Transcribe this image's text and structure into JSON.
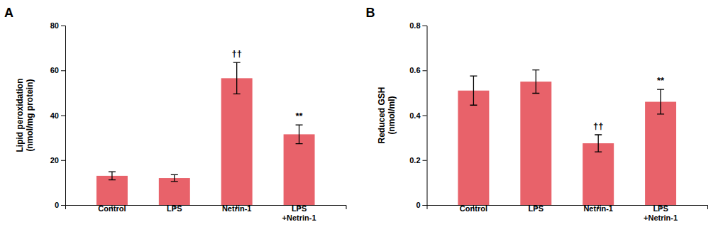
{
  "chart_data": [
    {
      "type": "bar",
      "title": "A",
      "categories": [
        "Control",
        "LPS",
        "Netrin-1",
        "LPS\n+Netrin-1"
      ],
      "values": [
        13.0,
        12.0,
        56.5,
        31.5
      ],
      "errors": [
        1.8,
        1.5,
        7.0,
        4.2
      ],
      "ylabel": "Lipid peroxidation\n(nmol/mg protein)",
      "ylim": [
        0,
        80
      ],
      "yticks": [
        0,
        20,
        40,
        60,
        80
      ],
      "color": "#E8626A",
      "annotations": [
        {
          "category": "Netrin-1",
          "text": "††"
        },
        {
          "category": "LPS\n+Netrin-1",
          "text": "**"
        }
      ]
    },
    {
      "type": "bar",
      "title": "B",
      "categories": [
        "Control",
        "LPS",
        "Netrin-1",
        "LPS\n+Netrin-1"
      ],
      "values": [
        0.51,
        0.55,
        0.275,
        0.46
      ],
      "errors": [
        0.065,
        0.052,
        0.038,
        0.055
      ],
      "ylabel": "Reduced GSH\n(nmol/ml)",
      "ylim": [
        0,
        0.8
      ],
      "yticks": [
        0,
        0.2,
        0.4,
        0.6,
        0.8
      ],
      "color": "#E8626A",
      "annotations": [
        {
          "category": "Netrin-1",
          "text": "††"
        },
        {
          "category": "LPS\n+Netrin-1",
          "text": "**"
        }
      ]
    }
  ]
}
